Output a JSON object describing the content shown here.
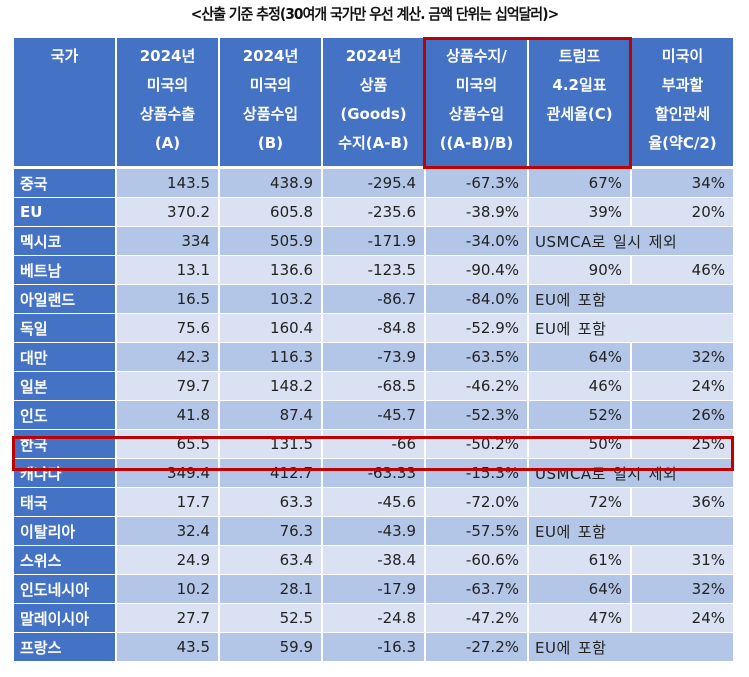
{
  "caption": "<산출 기준 추정(30여개 국가만 우선 계산. 금액 단위는 십억달러)>",
  "colors": {
    "header_bg": "#4472c4",
    "row_odd": "#b4c6e7",
    "row_even": "#d9e1f2",
    "highlight": "#c00000"
  },
  "headers": [
    {
      "lines": [
        "국가"
      ]
    },
    {
      "lines": [
        "2024년",
        "미국의",
        "상품수출",
        "(A)"
      ]
    },
    {
      "lines": [
        "2024년",
        "미국의",
        "상품수입",
        "(B)"
      ]
    },
    {
      "lines": [
        "2024년",
        "상품",
        "(Goods)",
        "수지(A-B)"
      ]
    },
    {
      "lines": [
        "상품수지/",
        "미국의",
        "상품수입",
        "((A-B)/B)"
      ]
    },
    {
      "lines": [
        "트럼프",
        "4.2일표",
        "관세율(C)"
      ]
    },
    {
      "lines": [
        "미국이",
        "부과할",
        "할인관세",
        "율(약C/2)"
      ]
    }
  ],
  "rows": [
    {
      "country": "중국",
      "exports": "143.5",
      "imports": "438.9",
      "balance": "-295.4",
      "ratio": "-67.3%",
      "tariff": "67%",
      "discount": "34%"
    },
    {
      "country": "EU",
      "exports": "370.2",
      "imports": "605.8",
      "balance": "-235.6",
      "ratio": "-38.9%",
      "tariff": "39%",
      "discount": "20%"
    },
    {
      "country": "멕시코",
      "exports": "334",
      "imports": "505.9",
      "balance": "-171.9",
      "ratio": "-34.0%",
      "note": [
        "USMCA로",
        "일시",
        "제외"
      ]
    },
    {
      "country": "베트남",
      "exports": "13.1",
      "imports": "136.6",
      "balance": "-123.5",
      "ratio": "-90.4%",
      "tariff": "90%",
      "discount": "46%"
    },
    {
      "country": "아일랜드",
      "exports": "16.5",
      "imports": "103.2",
      "balance": "-86.7",
      "ratio": "-84.0%",
      "note": [
        "EU에",
        "포함"
      ]
    },
    {
      "country": "독일",
      "exports": "75.6",
      "imports": "160.4",
      "balance": "-84.8",
      "ratio": "-52.9%",
      "note": [
        "EU에",
        "포함"
      ]
    },
    {
      "country": "대만",
      "exports": "42.3",
      "imports": "116.3",
      "balance": "-73.9",
      "ratio": "-63.5%",
      "tariff": "64%",
      "discount": "32%"
    },
    {
      "country": "일본",
      "exports": "79.7",
      "imports": "148.2",
      "balance": "-68.5",
      "ratio": "-46.2%",
      "tariff": "46%",
      "discount": "24%"
    },
    {
      "country": "인도",
      "exports": "41.8",
      "imports": "87.4",
      "balance": "-45.7",
      "ratio": "-52.3%",
      "tariff": "52%",
      "discount": "26%"
    },
    {
      "country": "한국",
      "exports": "65.5",
      "imports": "131.5",
      "balance": "-66",
      "ratio": "-50.2%",
      "tariff": "50%",
      "discount": "25%"
    },
    {
      "country": "캐나다",
      "exports": "349.4",
      "imports": "412.7",
      "balance": "-63.33",
      "ratio": "-15.3%",
      "note": [
        "USMCA로",
        "일시",
        "제외"
      ]
    },
    {
      "country": "태국",
      "exports": "17.7",
      "imports": "63.3",
      "balance": "-45.6",
      "ratio": "-72.0%",
      "tariff": "72%",
      "discount": "36%"
    },
    {
      "country": "이탈리아",
      "exports": "32.4",
      "imports": "76.3",
      "balance": "-43.9",
      "ratio": "-57.5%",
      "note": [
        "EU에",
        "포함"
      ]
    },
    {
      "country": "스위스",
      "exports": "24.9",
      "imports": "63.4",
      "balance": "-38.4",
      "ratio": "-60.6%",
      "tariff": "61%",
      "discount": "31%"
    },
    {
      "country": "인도네시아",
      "exports": "10.2",
      "imports": "28.1",
      "balance": "-17.9",
      "ratio": "-63.7%",
      "tariff": "64%",
      "discount": "32%"
    },
    {
      "country": "말레이시아",
      "exports": "27.7",
      "imports": "52.5",
      "balance": "-24.8",
      "ratio": "-47.2%",
      "tariff": "47%",
      "discount": "24%"
    },
    {
      "country": "프랑스",
      "exports": "43.5",
      "imports": "59.9",
      "balance": "-16.3",
      "ratio": "-27.2%",
      "note": [
        "EU에",
        "포함"
      ]
    }
  ]
}
